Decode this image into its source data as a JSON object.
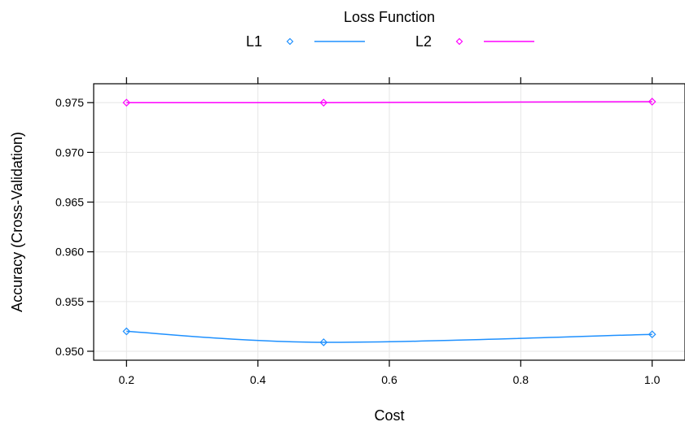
{
  "chart_data": {
    "type": "line",
    "xlabel": "Cost",
    "ylabel": "Accuracy (Cross-Validation)",
    "legend_title": "Loss Function",
    "legend_position": "top",
    "grid": true,
    "x": [
      0.2,
      0.5,
      1.0
    ],
    "xlim": [
      0.15,
      1.05
    ],
    "ylim": [
      0.9491,
      0.9769
    ],
    "x_ticks": [
      0.2,
      0.4,
      0.6,
      0.8,
      1.0
    ],
    "x_tick_labels": [
      "0.2",
      "0.4",
      "0.6",
      "0.8",
      "1.0"
    ],
    "y_ticks": [
      0.95,
      0.955,
      0.96,
      0.965,
      0.97,
      0.975
    ],
    "y_tick_labels": [
      "0.950",
      "0.955",
      "0.960",
      "0.965",
      "0.970",
      "0.975"
    ],
    "series": [
      {
        "name": "L1",
        "color": "#1E90FF",
        "values": [
          0.952,
          0.9509,
          0.9517
        ]
      },
      {
        "name": "L2",
        "color": "#FF00FF",
        "values": [
          0.975,
          0.975,
          0.9751
        ]
      }
    ]
  }
}
